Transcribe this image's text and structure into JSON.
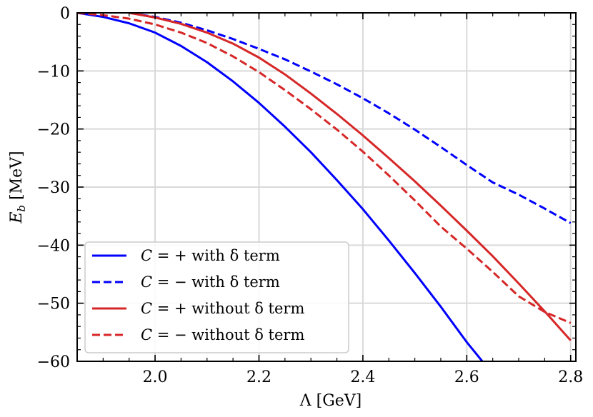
{
  "chart_data": {
    "type": "line",
    "xlabel": "Λ [GeV]",
    "ylabel_main": "E",
    "ylabel_sub": "b",
    "ylabel_unit": " [MeV]",
    "xlim": [
      1.85,
      2.81
    ],
    "ylim": [
      -60,
      0
    ],
    "xticks": [
      2.0,
      2.2,
      2.4,
      2.6,
      2.8
    ],
    "xtick_labels": [
      "2.0",
      "2.2",
      "2.4",
      "2.6",
      "2.8"
    ],
    "yticks": [
      0,
      -10,
      -20,
      -30,
      -40,
      -50,
      -60
    ],
    "ytick_labels": [
      "0",
      "−10",
      "−20",
      "−30",
      "−40",
      "−50",
      "−60"
    ],
    "grid": true,
    "legend_position": "lower-left",
    "series": [
      {
        "name": "C = + with δ term",
        "label_C": "C",
        "label_rest": " = +  with δ term",
        "color": "#0000ff",
        "dash": "solid",
        "points": [
          [
            1.85,
            0
          ],
          [
            1.9,
            -0.7
          ],
          [
            1.95,
            -1.8
          ],
          [
            2.0,
            -3.4
          ],
          [
            2.05,
            -5.7
          ],
          [
            2.1,
            -8.5
          ],
          [
            2.15,
            -11.8
          ],
          [
            2.2,
            -15.5
          ],
          [
            2.25,
            -19.6
          ],
          [
            2.3,
            -24.0
          ],
          [
            2.35,
            -28.8
          ],
          [
            2.4,
            -33.8
          ],
          [
            2.45,
            -39.2
          ],
          [
            2.5,
            -44.8
          ],
          [
            2.55,
            -50.6
          ],
          [
            2.6,
            -56.7
          ],
          [
            2.63,
            -60
          ]
        ]
      },
      {
        "name": "C = − with δ term",
        "label_C": "C",
        "label_rest": " = −  with δ term",
        "color": "#0000ff",
        "dash": "dashed",
        "points": [
          [
            1.95,
            0
          ],
          [
            2.0,
            -0.7
          ],
          [
            2.05,
            -1.7
          ],
          [
            2.1,
            -3.0
          ],
          [
            2.15,
            -4.5
          ],
          [
            2.2,
            -6.2
          ],
          [
            2.25,
            -8.0
          ],
          [
            2.3,
            -10.1
          ],
          [
            2.35,
            -12.3
          ],
          [
            2.4,
            -14.7
          ],
          [
            2.45,
            -17.3
          ],
          [
            2.5,
            -20.1
          ],
          [
            2.55,
            -23.1
          ],
          [
            2.6,
            -26.2
          ],
          [
            2.65,
            -29.2
          ],
          [
            2.7,
            -31.3
          ],
          [
            2.75,
            -33.7
          ],
          [
            2.8,
            -36.2
          ]
        ]
      },
      {
        "name": "C = + without δ term",
        "label_C": "C",
        "label_rest": " = +  without δ term",
        "color": "#d62728",
        "dash": "solid",
        "points": [
          [
            1.95,
            0
          ],
          [
            2.0,
            -0.8
          ],
          [
            2.05,
            -1.9
          ],
          [
            2.1,
            -3.4
          ],
          [
            2.15,
            -5.3
          ],
          [
            2.2,
            -7.7
          ],
          [
            2.25,
            -10.6
          ],
          [
            2.3,
            -13.9
          ],
          [
            2.35,
            -17.4
          ],
          [
            2.4,
            -21.1
          ],
          [
            2.45,
            -25.0
          ],
          [
            2.5,
            -29.0
          ],
          [
            2.55,
            -33.2
          ],
          [
            2.6,
            -37.5
          ],
          [
            2.65,
            -41.9
          ],
          [
            2.7,
            -46.6
          ],
          [
            2.75,
            -51.4
          ],
          [
            2.8,
            -56.4
          ]
        ]
      },
      {
        "name": "C = − without δ term",
        "label_C": "C",
        "label_rest": " = −  without δ term",
        "color": "#d62728",
        "dash": "dashed",
        "points": [
          [
            1.85,
            0
          ],
          [
            1.9,
            -0.4
          ],
          [
            1.95,
            -1.0
          ],
          [
            2.0,
            -2.0
          ],
          [
            2.05,
            -3.4
          ],
          [
            2.1,
            -5.2
          ],
          [
            2.15,
            -7.5
          ],
          [
            2.2,
            -10.2
          ],
          [
            2.25,
            -13.3
          ],
          [
            2.3,
            -16.6
          ],
          [
            2.35,
            -20.1
          ],
          [
            2.4,
            -23.9
          ],
          [
            2.45,
            -28.0
          ],
          [
            2.5,
            -32.3
          ],
          [
            2.55,
            -36.8
          ],
          [
            2.6,
            -40.6
          ],
          [
            2.65,
            -44.6
          ],
          [
            2.7,
            -48.8
          ],
          [
            2.75,
            -51.5
          ],
          [
            2.8,
            -53.4
          ]
        ]
      }
    ]
  }
}
